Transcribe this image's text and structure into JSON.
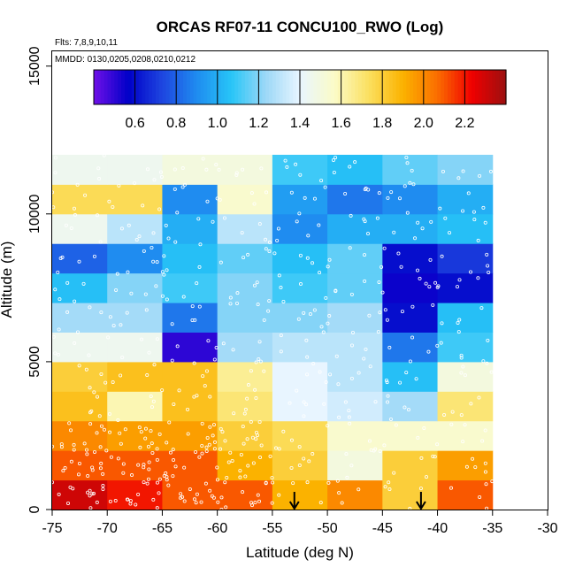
{
  "chart_data": {
    "type": "heatmap",
    "title": "ORCAS RF07-11 CONCU100_RWO (Log)",
    "flights_note": "Flts: 7,8,9,10,11",
    "dates_note": "MMDD: 0130,0205,0208,0210,0212",
    "xlabel": "Latitude (deg N)",
    "ylabel": "Altitude (m)",
    "xlim": [
      -75,
      -30
    ],
    "ylim": [
      0,
      15500
    ],
    "x_ticks": [
      -75,
      -70,
      -65,
      -60,
      -55,
      -50,
      -45,
      -40,
      -35,
      -30
    ],
    "y_ticks": [
      0,
      5000,
      10000,
      15000
    ],
    "colorbar": {
      "range": [
        0.4,
        2.4
      ],
      "ticks": [
        0.6,
        0.8,
        1.0,
        1.2,
        1.4,
        1.6,
        1.8,
        2.0,
        2.2
      ],
      "tick_labels": [
        "0.6",
        "0.8",
        "1.0",
        "1.2",
        "1.4",
        "1.6",
        "1.8",
        "2.0",
        "2.2"
      ],
      "colors": [
        "#7010e8",
        "#0000c8",
        "#1e46e0",
        "#1f8cf0",
        "#27c5f7",
        "#9cd8f7",
        "#e8f5ff",
        "#fbfbc8",
        "#fbe060",
        "#fbb200",
        "#fb6e00",
        "#f00000",
        "#9b1010"
      ]
    },
    "lat_bins": [
      -75,
      -70,
      -65,
      -60,
      -55,
      -50,
      -45,
      -40,
      -35
    ],
    "alt_bins": [
      0,
      1000,
      2000,
      3000,
      4000,
      5000,
      6000,
      7000,
      8000,
      9000,
      10000,
      11000,
      12000
    ],
    "values": [
      [
        2.3,
        2.2,
        2.1,
        2.1,
        1.9,
        2.0,
        1.8,
        2.1
      ],
      [
        2.1,
        2.1,
        2.1,
        1.9,
        1.8,
        1.5,
        1.8,
        1.95
      ],
      [
        2.0,
        1.95,
        1.95,
        1.8,
        1.75,
        1.55,
        1.55,
        1.55
      ],
      [
        1.85,
        1.6,
        1.85,
        1.7,
        1.4,
        1.35,
        1.25,
        1.7
      ],
      [
        1.8,
        1.85,
        1.85,
        1.65,
        1.4,
        1.3,
        1.05,
        1.5
      ],
      [
        1.45,
        1.45,
        0.5,
        1.25,
        1.3,
        1.3,
        0.85,
        1.1
      ],
      [
        1.25,
        1.25,
        0.85,
        1.2,
        1.2,
        1.25,
        0.6,
        1.05
      ],
      [
        1.05,
        1.2,
        1.1,
        1.2,
        1.1,
        1.15,
        0.55,
        0.6
      ],
      [
        0.8,
        0.9,
        1.05,
        1.15,
        1.05,
        1.15,
        0.6,
        0.7
      ],
      [
        1.45,
        1.3,
        1.0,
        1.3,
        0.9,
        1.0,
        1.0,
        1.05
      ],
      [
        1.75,
        1.75,
        0.9,
        1.55,
        0.95,
        0.85,
        0.9,
        1.0
      ],
      [
        1.45,
        1.45,
        1.5,
        1.5,
        1.1,
        1.05,
        1.15,
        1.2
      ]
    ],
    "arrows": [
      {
        "lat": -53,
        "alt": 0
      },
      {
        "lat": -41.5,
        "alt": 0
      }
    ]
  }
}
